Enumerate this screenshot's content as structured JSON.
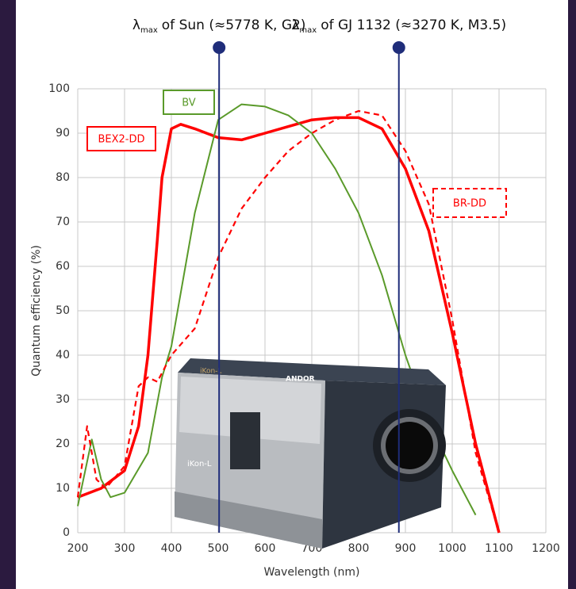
{
  "chart_data": {
    "type": "line",
    "xlabel": "Wavelength (nm)",
    "ylabel": "Quantum efficiency (%)",
    "xlim": [
      200,
      1200
    ],
    "xticks": [
      200,
      300,
      400,
      500,
      600,
      700,
      800,
      900,
      1000,
      1100,
      1200
    ],
    "ylim": [
      0,
      100
    ],
    "yticks": [
      0,
      10,
      20,
      30,
      40,
      50,
      60,
      70,
      80,
      90,
      100
    ],
    "grid": true,
    "series": [
      {
        "name": "BEX2-DD",
        "color": "#ff0000",
        "dash": false,
        "x": [
          200,
          250,
          300,
          330,
          350,
          370,
          380,
          400,
          420,
          450,
          500,
          550,
          600,
          650,
          700,
          750,
          800,
          850,
          900,
          950,
          1000,
          1050,
          1100
        ],
        "values": [
          8,
          10,
          14,
          24,
          40,
          66,
          80,
          91,
          92,
          91,
          89,
          88.5,
          90,
          91.5,
          93,
          93.5,
          93.5,
          91,
          82,
          68,
          45,
          20,
          0
        ]
      },
      {
        "name": "BV",
        "color": "#5a9a2a",
        "dash": false,
        "x": [
          200,
          230,
          250,
          270,
          300,
          350,
          380,
          400,
          450,
          500,
          550,
          600,
          650,
          700,
          750,
          800,
          850,
          900,
          950,
          1000,
          1050
        ],
        "values": [
          6,
          21,
          12,
          8,
          9,
          18,
          35,
          42,
          72,
          93,
          96.5,
          96,
          94,
          90,
          82,
          72,
          58,
          40,
          25,
          14,
          4
        ]
      },
      {
        "name": "BR-DD",
        "color": "#ff0000",
        "dash": true,
        "x": [
          200,
          220,
          240,
          260,
          300,
          330,
          350,
          370,
          400,
          450,
          500,
          550,
          600,
          650,
          700,
          750,
          800,
          850,
          900,
          950,
          1000,
          1050,
          1100
        ],
        "values": [
          8,
          24,
          12,
          10,
          15,
          33,
          35,
          34,
          40,
          46,
          62,
          73,
          80,
          86,
          90,
          93,
          95,
          94,
          86,
          74,
          48,
          18,
          0
        ]
      }
    ],
    "markers": [
      {
        "x": 502,
        "symbol": "λ",
        "sub": "max",
        "text": "of Sun (≈5778 K, G2)"
      },
      {
        "x": 886,
        "symbol": "λ",
        "sub": "max",
        "text": "of GJ 1132 (≈3270 K, M3.5)"
      }
    ],
    "marker_color": "#1f2d7a",
    "photo_labels": [
      "iKon-L",
      "ANDOR",
      "iKon-L"
    ]
  }
}
